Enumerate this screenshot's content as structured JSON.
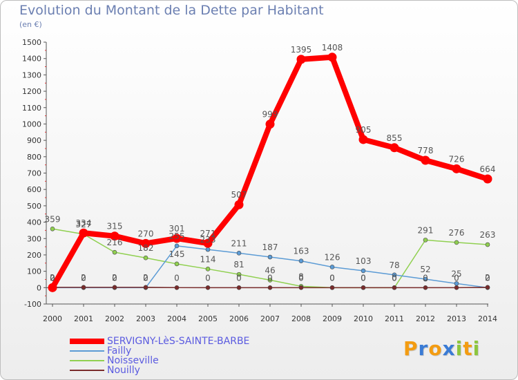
{
  "chart_data": {
    "type": "line",
    "title": "Evolution du Montant de la Dette par Habitant",
    "ylabel": "(en €)",
    "xlabel": "",
    "x": [
      "2000",
      "2001",
      "2002",
      "2003",
      "2004",
      "2005",
      "2006",
      "2007",
      "2008",
      "2009",
      "2010",
      "2011",
      "2012",
      "2013",
      "2014"
    ],
    "ylim": [
      -100,
      1500
    ],
    "yticks": [
      "-100",
      "0",
      "100",
      "200",
      "300",
      "400",
      "500",
      "600",
      "700",
      "800",
      "900",
      "1000",
      "1100",
      "1200",
      "1300",
      "1400",
      "1500"
    ],
    "series": [
      {
        "name": "SERVIGNY-LèS-SAINTE-BARBE",
        "color": "#ff0000",
        "values": [
          0,
          334,
          315,
          270,
          301,
          271,
          507,
          999,
          1395,
          1408,
          905,
          855,
          778,
          726,
          664
        ],
        "labels": [
          "0",
          "334",
          "315",
          "270",
          "301",
          "271",
          "507",
          "999",
          "1395",
          "1408",
          "905",
          "855",
          "778",
          "726",
          "664"
        ]
      },
      {
        "name": "Failly",
        "color": "#5b9bd5",
        "values": [
          0,
          0,
          0,
          0,
          255,
          233,
          211,
          187,
          163,
          126,
          103,
          78,
          52,
          25,
          0
        ],
        "labels": [
          "0",
          "0",
          "0",
          "0",
          "255",
          "233",
          "211",
          "187",
          "163",
          "126",
          "103",
          "78",
          "52",
          "25",
          "0"
        ]
      },
      {
        "name": "Noisseville",
        "color": "#90d050",
        "values": [
          359,
          327,
          216,
          182,
          145,
          114,
          81,
          46,
          8,
          0,
          0,
          0,
          291,
          276,
          263
        ],
        "labels": [
          "359",
          "327",
          "216",
          "182",
          "145",
          "114",
          "81",
          "46",
          "8",
          "0",
          "0",
          "0",
          "291",
          "276",
          "263"
        ]
      },
      {
        "name": "Nouilly",
        "color": "#7a2b2b",
        "values": [
          2,
          2,
          2,
          2,
          0,
          0,
          0,
          0,
          0,
          0,
          0,
          0,
          0,
          0,
          2
        ],
        "labels": [
          "2",
          "2",
          "2",
          "2",
          "0",
          "0",
          "0",
          "0",
          "0",
          "0",
          "0",
          "0",
          "0",
          "0",
          "2"
        ]
      }
    ],
    "legend": "bottom-left",
    "grid": false
  },
  "branding": {
    "logo_letters": [
      "P",
      "r",
      "o",
      "x",
      "i",
      "t",
      "i"
    ],
    "logo_colors": [
      "#f39c12",
      "#3a7bd5",
      "#f39c12",
      "#3a7bd5",
      "#8dc63f",
      "#f39c12",
      "#8dc63f"
    ]
  }
}
